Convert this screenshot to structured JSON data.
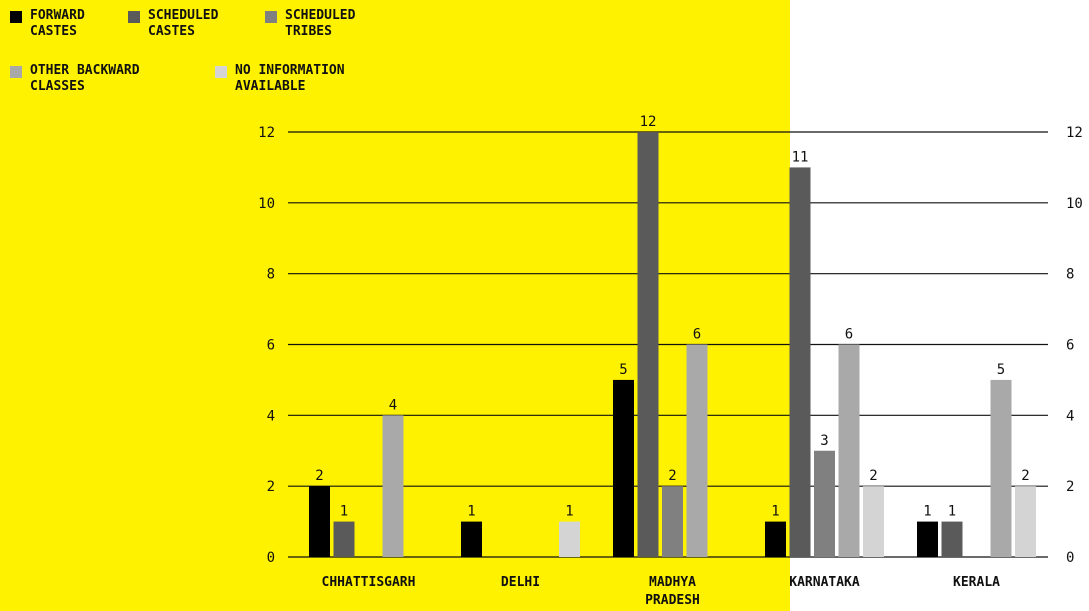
{
  "chart_data": {
    "type": "bar",
    "categories": [
      "CHHATTISGARH",
      "DELHI",
      "MADHYA\nPRADESH",
      "KARNATAKA",
      "KERALA"
    ],
    "series": [
      {
        "name": "FORWARD\nCASTES",
        "color": "#000000",
        "values": [
          2,
          1,
          5,
          1,
          1
        ]
      },
      {
        "name": "SCHEDULED\nCASTES",
        "color": "#5a5a5a",
        "values": [
          1,
          0,
          12,
          11,
          1
        ]
      },
      {
        "name": "SCHEDULED\nTRIBES",
        "color": "#808080",
        "values": [
          0,
          0,
          2,
          3,
          0
        ]
      },
      {
        "name": "OTHER BACKWARD\nCLASSES",
        "color": "#a9a9a9",
        "values": [
          4,
          0,
          6,
          6,
          5
        ]
      },
      {
        "name": "NO INFORMATION\nAVAILABLE",
        "color": "#d4d4d4",
        "values": [
          0,
          1,
          0,
          2,
          2
        ]
      }
    ],
    "ylim": [
      0,
      12
    ],
    "yticks": [
      0,
      2,
      4,
      6,
      8,
      10,
      12
    ],
    "grid": true,
    "legend": "top-left",
    "show_zero_labels": false
  }
}
